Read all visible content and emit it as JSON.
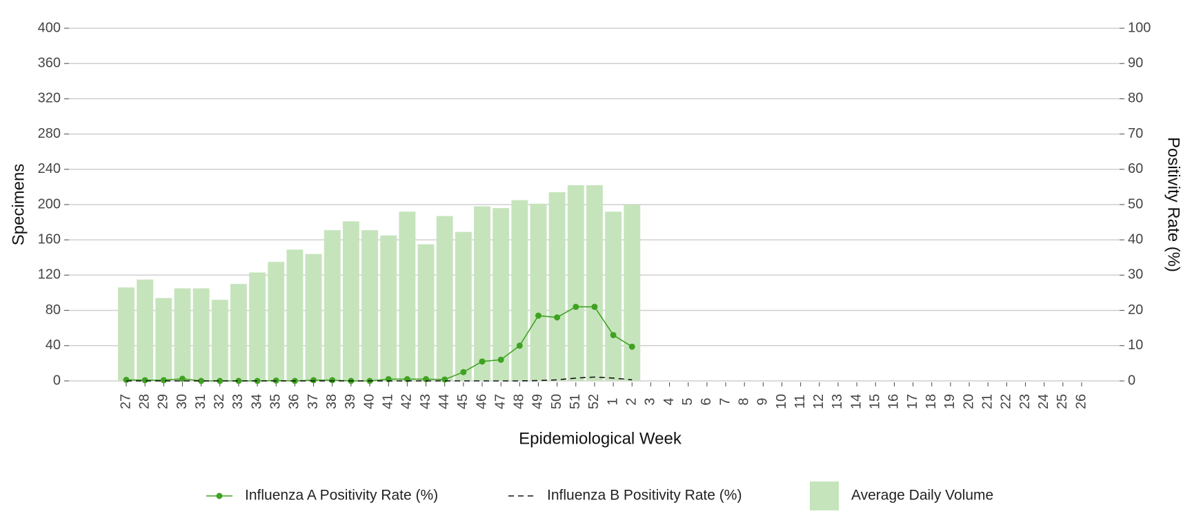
{
  "chart_data": {
    "type": "bar",
    "xlabel": "Epidemiological Week",
    "ylabel": "Specimens",
    "y2label": "Positivity Rate (%)",
    "categories": [
      "27",
      "28",
      "29",
      "30",
      "31",
      "32",
      "33",
      "34",
      "35",
      "36",
      "37",
      "38",
      "39",
      "40",
      "41",
      "42",
      "43",
      "44",
      "45",
      "46",
      "47",
      "48",
      "49",
      "50",
      "51",
      "52",
      "1",
      "2",
      "3",
      "4",
      "5",
      "6",
      "7",
      "8",
      "9",
      "10",
      "11",
      "12",
      "13",
      "14",
      "15",
      "16",
      "17",
      "18",
      "19",
      "20",
      "21",
      "22",
      "23",
      "24",
      "25",
      "26"
    ],
    "series": [
      {
        "name": "Influenza A Positivity Rate (%)",
        "type": "line",
        "axis": "y2",
        "color": "#3fa222",
        "marker": "circle",
        "linestyle": "solid",
        "values": [
          0.3,
          0.2,
          0.2,
          0.6,
          0,
          0,
          0,
          0,
          0.1,
          0,
          0.2,
          0.2,
          0,
          0,
          0.5,
          0.5,
          0.5,
          0.4,
          2.5,
          5.5,
          6,
          10,
          18.5,
          18,
          21,
          21,
          13,
          9.7,
          null,
          null,
          null,
          null,
          null,
          null,
          null,
          null,
          null,
          null,
          null,
          null,
          null,
          null,
          null,
          null,
          null,
          null,
          null,
          null,
          null,
          null,
          null,
          null
        ]
      },
      {
        "name": "Influenza B Positivity Rate (%)",
        "type": "line",
        "axis": "y2",
        "color": "#111111",
        "linestyle": "dashed",
        "values": [
          0,
          0,
          0,
          0,
          0,
          0,
          0,
          0,
          0,
          0,
          0,
          0,
          0,
          0,
          0,
          0,
          0,
          0,
          0,
          0,
          0,
          0,
          0.1,
          0.3,
          0.8,
          1.1,
          0.8,
          0.3,
          null,
          null,
          null,
          null,
          null,
          null,
          null,
          null,
          null,
          null,
          null,
          null,
          null,
          null,
          null,
          null,
          null,
          null,
          null,
          null,
          null,
          null,
          null,
          null
        ]
      },
      {
        "name": "Average Daily Volume",
        "type": "bar",
        "axis": "y",
        "color": "#c6e4bc",
        "values": [
          106,
          115,
          94,
          105,
          105,
          92,
          110,
          123,
          135,
          149,
          144,
          171,
          181,
          171,
          165,
          192,
          155,
          187,
          169,
          198,
          196,
          205,
          201,
          214,
          222,
          222,
          192,
          200,
          null,
          null,
          null,
          null,
          null,
          null,
          null,
          null,
          null,
          null,
          null,
          null,
          null,
          null,
          null,
          null,
          null,
          null,
          null,
          null,
          null,
          null,
          null,
          null
        ]
      }
    ],
    "ylim": [
      0,
      400
    ],
    "yticks": [
      0,
      40,
      80,
      120,
      160,
      200,
      240,
      280,
      320,
      360,
      400
    ],
    "y2lim": [
      0,
      100
    ],
    "y2ticks": [
      0,
      10,
      20,
      30,
      40,
      50,
      60,
      70,
      80,
      90,
      100
    ],
    "grid": true,
    "legend": "bottom"
  }
}
